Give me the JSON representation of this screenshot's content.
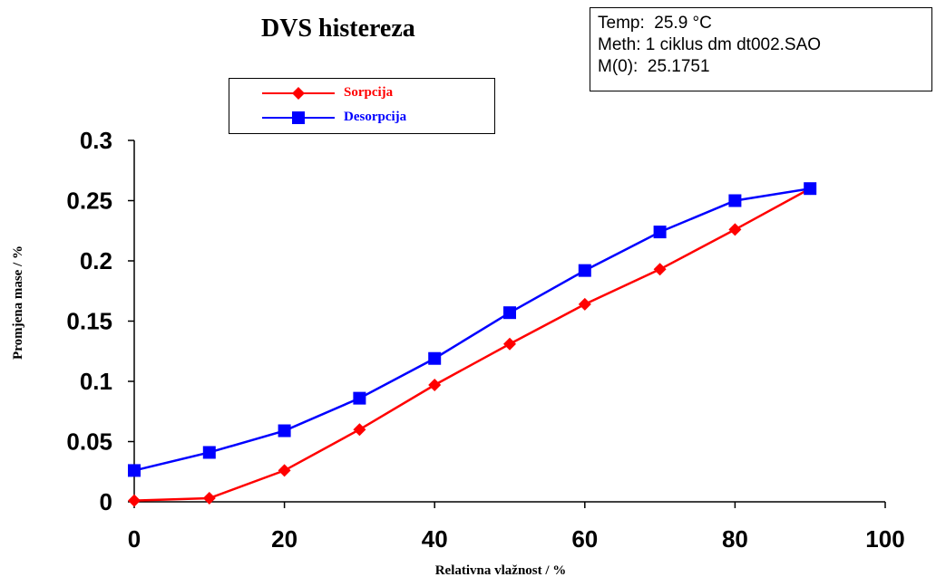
{
  "chart_data": {
    "type": "line",
    "title": "DVS histereza",
    "xlabel": "Relativna vlažnost / %",
    "ylabel": "Promjena mase / %",
    "xlim": [
      0,
      100
    ],
    "ylim": [
      0,
      0.3
    ],
    "x_ticks": [
      "0",
      "20",
      "40",
      "60",
      "80",
      "100"
    ],
    "y_ticks": [
      "0",
      "0.05",
      "0.1",
      "0.15",
      "0.2",
      "0.25",
      "0.3"
    ],
    "grid": false,
    "legend_position": "top-left",
    "series": [
      {
        "name": "Sorpcija",
        "color": "#ff0000",
        "marker": "diamond",
        "x": [
          0,
          10,
          20,
          30,
          40,
          50,
          60,
          70,
          80,
          90
        ],
        "values": [
          0.001,
          0.003,
          0.026,
          0.06,
          0.097,
          0.131,
          0.164,
          0.193,
          0.226,
          0.26
        ]
      },
      {
        "name": "Desorpcija",
        "color": "#0000ff",
        "marker": "square",
        "x": [
          0,
          10,
          20,
          30,
          40,
          50,
          60,
          70,
          80,
          90
        ],
        "values": [
          0.026,
          0.041,
          0.059,
          0.086,
          0.119,
          0.157,
          0.192,
          0.224,
          0.25,
          0.26
        ]
      }
    ]
  },
  "info": {
    "temp": "Temp:  25.9 °C",
    "meth": "Meth: 1 ciklus dm dt002.SAO",
    "m0": "M(0):  25.1751"
  }
}
